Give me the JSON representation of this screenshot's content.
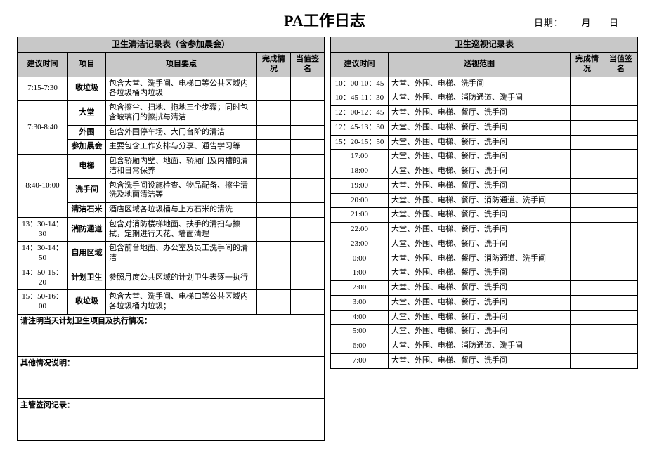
{
  "header": {
    "title": "PA工作日志",
    "date_label": "日期：",
    "month_unit": "月",
    "day_unit": "日"
  },
  "left": {
    "section_title": "卫生清洁记录表（含参加晨会）",
    "headers": {
      "time": "建议时间",
      "item": "项目",
      "points": "项目要点",
      "done": "完成情况",
      "sign": "当值签名"
    },
    "groups": [
      {
        "time": "7:15-7:30",
        "rows": [
          {
            "item": "收垃圾",
            "points": "包含大堂、洗手间、电梯口等公共区域内各垃圾桶内垃圾"
          }
        ]
      },
      {
        "time": "7:30-8:40",
        "rows": [
          {
            "item": "大堂",
            "points": "包含擦尘、扫地、拖地三个步骤；同时包含玻璃门的擦拭与清洁"
          },
          {
            "item": "外围",
            "points": "包含外围停车场、大门台阶的清洁"
          },
          {
            "item": "参加晨会",
            "points": "主要包含工作安排与分享、通告学习等"
          }
        ]
      },
      {
        "time": "8:40-10:00",
        "rows": [
          {
            "item": "电梯",
            "points": "包含轿厢内壁、地面、轿厢门及内槽的清洁和日常保养"
          },
          {
            "item": "洗手间",
            "points": "包含洗手间设施检查、物品配备、擦尘清洗及地面清洁等"
          },
          {
            "item": "清洁石米",
            "points": "酒店区域各垃圾桶与上方石米的清洗"
          }
        ]
      },
      {
        "time": "13：30-14：30",
        "rows": [
          {
            "item": "消防通道",
            "points": "包含对消防楼梯地面、扶手的清扫与擦拭，定期进行天花、墙面清理"
          }
        ]
      },
      {
        "time": "14：30-14：50",
        "rows": [
          {
            "item": "自用区域",
            "points": "包含前台地面、办公室及员工洗手间的清洁"
          }
        ]
      },
      {
        "time": "14：50-15：20",
        "rows": [
          {
            "item": "计划卫生",
            "points": "参照月度公共区域的计划卫生表逐一执行"
          }
        ]
      },
      {
        "time": "15：50-16：00",
        "rows": [
          {
            "item": "收垃圾",
            "points": "包含大堂、洗手间、电梯口等公共区域内各垃圾桶内垃圾；"
          }
        ]
      }
    ],
    "notes": [
      "请注明当天计划卫生项目及执行情况：",
      "其他情况说明：",
      "主管签阅记录："
    ]
  },
  "right": {
    "section_title": "卫生巡视记录表",
    "headers": {
      "time": "建议时间",
      "scope": "巡视范围",
      "done": "完成情况",
      "sign": "当值签名"
    },
    "rows": [
      {
        "time": "10：00-10：45",
        "scope": "大堂、外围、电梯、洗手间"
      },
      {
        "time": "10：45-11：30",
        "scope": "大堂、外围、电梯、消防通道、洗手间"
      },
      {
        "time": "12：00-12：45",
        "scope": "大堂、外围、电梯、餐厅、洗手间"
      },
      {
        "time": "12：45-13：30",
        "scope": "大堂、外围、电梯、餐厅、洗手间"
      },
      {
        "time": "15：20-15：50",
        "scope": "大堂、外围、电梯、餐厅、洗手间"
      },
      {
        "time": "17:00",
        "scope": "大堂、外围、电梯、餐厅、洗手间"
      },
      {
        "time": "18:00",
        "scope": "大堂、外围、电梯、餐厅、洗手间"
      },
      {
        "time": "19:00",
        "scope": "大堂、外围、电梯、餐厅、洗手间"
      },
      {
        "time": "20:00",
        "scope": "大堂、外围、电梯、餐厅、消防通道、洗手间"
      },
      {
        "time": "21:00",
        "scope": "大堂、外围、电梯、餐厅、洗手间"
      },
      {
        "time": "22:00",
        "scope": "大堂、外围、电梯、餐厅、洗手间"
      },
      {
        "time": "23:00",
        "scope": "大堂、外围、电梯、餐厅、洗手间"
      },
      {
        "time": "0:00",
        "scope": "大堂、外围、电梯、餐厅、消防通道、洗手间"
      },
      {
        "time": "1:00",
        "scope": "大堂、外围、电梯、餐厅、洗手间"
      },
      {
        "time": "2:00",
        "scope": "大堂、外围、电梯、餐厅、洗手间"
      },
      {
        "time": "3:00",
        "scope": "大堂、外围、电梯、餐厅、洗手间"
      },
      {
        "time": "4:00",
        "scope": "大堂、外围、电梯、餐厅、洗手间"
      },
      {
        "time": "5:00",
        "scope": "大堂、外围、电梯、餐厅、洗手间"
      },
      {
        "time": "6:00",
        "scope": "大堂、外围、电梯、消防通道、洗手间"
      },
      {
        "time": "7:00",
        "scope": "大堂、外围、电梯、餐厅、洗手间"
      }
    ]
  }
}
